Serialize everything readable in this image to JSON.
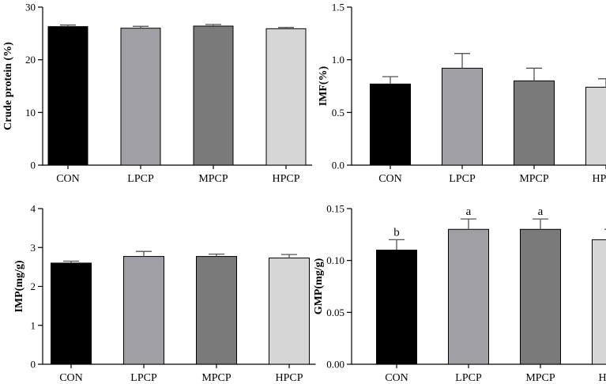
{
  "colors": {
    "CON": "#000000",
    "LPCP": "#a0a0a4",
    "MPCP": "#7a7a7a",
    "HPCP": "#d6d6d6",
    "error_bar": "#555555"
  },
  "chart_data": [
    {
      "type": "bar",
      "id": "crude-protein",
      "ylabel": "Crude protein (%)",
      "categories": [
        "CON",
        "LPCP",
        "MPCP",
        "HPCP"
      ],
      "values": [
        26.3,
        26.0,
        26.4,
        25.9
      ],
      "errors": [
        0.3,
        0.35,
        0.3,
        0.25
      ],
      "ylim": [
        0,
        30
      ],
      "yticks": [
        0,
        10,
        20,
        30
      ],
      "ytick_labels": [
        "0",
        "10",
        "20",
        "30"
      ],
      "significance": [
        "",
        "",
        "",
        ""
      ]
    },
    {
      "type": "bar",
      "id": "imf",
      "ylabel": "IMF(%)",
      "categories": [
        "CON",
        "LPCP",
        "MPCP",
        "HPCP"
      ],
      "values": [
        0.77,
        0.92,
        0.8,
        0.74
      ],
      "errors": [
        0.07,
        0.14,
        0.12,
        0.08
      ],
      "ylim": [
        0,
        1.5
      ],
      "yticks": [
        0,
        0.5,
        1.0,
        1.5
      ],
      "ytick_labels": [
        "0.0",
        "0.5",
        "1.0",
        "1.5"
      ],
      "significance": [
        "",
        "",
        "",
        ""
      ]
    },
    {
      "type": "bar",
      "id": "imp",
      "ylabel": "IMP(mg/g)",
      "categories": [
        "CON",
        "LPCP",
        "MPCP",
        "HPCP"
      ],
      "values": [
        2.6,
        2.77,
        2.77,
        2.73
      ],
      "errors": [
        0.05,
        0.13,
        0.06,
        0.09
      ],
      "ylim": [
        0,
        4
      ],
      "yticks": [
        0,
        1,
        2,
        3,
        4
      ],
      "ytick_labels": [
        "0",
        "1",
        "2",
        "3",
        "4"
      ],
      "significance": [
        "",
        "",
        "",
        ""
      ]
    },
    {
      "type": "bar",
      "id": "gmp",
      "ylabel": "GMP(mg/g)",
      "categories": [
        "CON",
        "LPCP",
        "MPCP",
        "HPCP"
      ],
      "values": [
        0.11,
        0.13,
        0.13,
        0.12
      ],
      "errors": [
        0.01,
        0.01,
        0.01,
        0.01
      ],
      "ylim": [
        0,
        0.15
      ],
      "yticks": [
        0,
        0.05,
        0.1,
        0.15
      ],
      "ytick_labels": [
        "0.00",
        "0.05",
        "0.10",
        "0.15"
      ],
      "significance": [
        "b",
        "a",
        "a",
        "ab"
      ]
    }
  ]
}
